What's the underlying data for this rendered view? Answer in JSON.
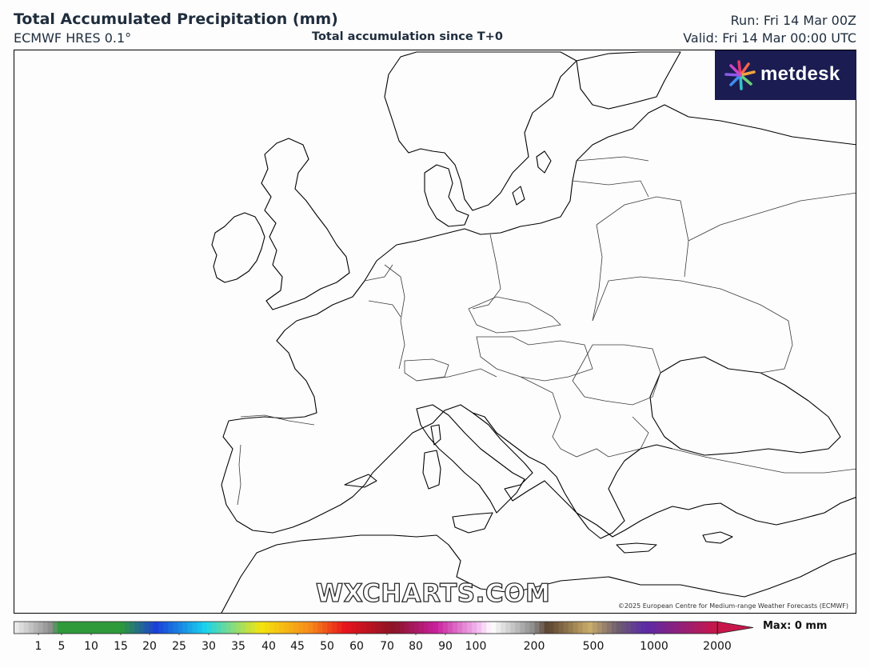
{
  "header": {
    "title": "Total Accumulated Precipitation (mm)",
    "model": "ECMWF HRES 0.1°",
    "subtitle": "Total accumulation since T+0",
    "run": "Run: Fri 14 Mar 00Z",
    "valid": "Valid: Fri 14 Mar 00:00 UTC"
  },
  "logo": {
    "text": "metdesk",
    "background": "#1a1c52"
  },
  "watermark": "WXCHARTS.COM",
  "copyright": "©2025 European Centre for Medium-range Weather Forecasts (ECMWF)",
  "colorbar": {
    "ticks": [
      "1",
      "5",
      "10",
      "15",
      "20",
      "25",
      "30",
      "35",
      "40",
      "45",
      "50",
      "60",
      "70",
      "80",
      "90",
      "100",
      "200",
      "500",
      "1000",
      "2000"
    ],
    "max_label": "Max: 0 mm",
    "colors": {
      "light_gray": "#e8e8e8",
      "dark_gray": "#8c8c8c",
      "green": "#2e9a3a",
      "blue": "#1b3fd8",
      "cyan": "#18d3ee",
      "yellow": "#f4e40e",
      "orange": "#f68a1a",
      "red": "#e8141c",
      "dark_red": "#8a1426",
      "magenta": "#c81f9b",
      "pink": "#f2b8ef",
      "brown": "#5a4230",
      "tan": "#c9ac6a",
      "purple": "#5a2aa8",
      "crimson": "#c8164a"
    }
  }
}
